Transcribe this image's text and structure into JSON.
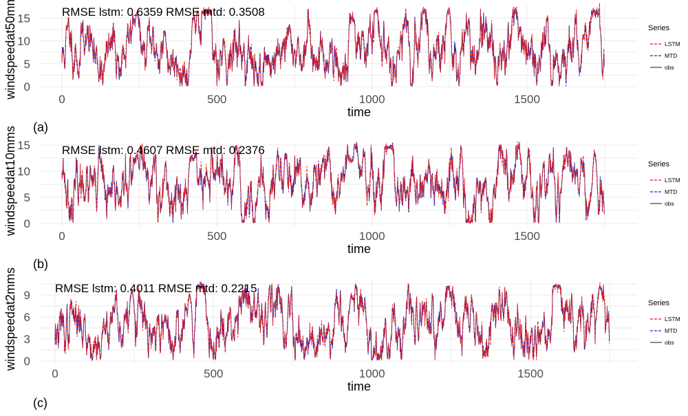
{
  "chart_data": [
    {
      "type": "line",
      "panel_label": "(a)",
      "annotation": "RMSE lstm: 0.6359 RMSE mtd: 0.3508",
      "xlabel": "time",
      "ylabel": "windspeedat50mms",
      "xlim": [
        0,
        1760
      ],
      "ylim": [
        0,
        17
      ],
      "xticks": [
        0,
        500,
        1000,
        1500
      ],
      "yticks": [
        0,
        5,
        10,
        15
      ],
      "grid": true,
      "legend": {
        "title": "Series",
        "position": "right",
        "entries": [
          "LSTM",
          "MTD",
          "obs"
        ]
      },
      "series_generation": {
        "seed": 11,
        "spikes": [
          [
            242,
            16.2
          ],
          [
            425,
            15.2
          ],
          [
            935,
            15.0
          ],
          [
            1718,
            16.0
          ]
        ]
      },
      "series": [
        {
          "name": "LSTM",
          "style": "dashed"
        },
        {
          "name": "MTD",
          "style": "dashed"
        },
        {
          "name": "obs",
          "style": "solid"
        }
      ]
    },
    {
      "type": "line",
      "panel_label": "(b)",
      "annotation": "RMSE lstm: 0.4607 RMSE mtd: 0.2376",
      "xlabel": "time",
      "ylabel": "windspeedat10mms",
      "xlim": [
        0,
        1760
      ],
      "ylim": [
        0,
        15
      ],
      "xticks": [
        0,
        500,
        1000,
        1500
      ],
      "yticks": [
        0,
        5,
        10,
        15
      ],
      "grid": true,
      "legend": {
        "title": "Series",
        "position": "right",
        "entries": [
          "LSTM",
          "MTD",
          "obs"
        ]
      },
      "series_generation": {
        "seed": 23,
        "spikes": [
          [
            242,
            12.8
          ],
          [
            425,
            12.3
          ],
          [
            935,
            12.0
          ],
          [
            1718,
            13.5
          ]
        ]
      },
      "series": [
        {
          "name": "LSTM",
          "style": "dashed"
        },
        {
          "name": "MTD",
          "style": "dashed"
        },
        {
          "name": "obs",
          "style": "solid"
        }
      ]
    },
    {
      "type": "line",
      "panel_label": "(c)",
      "annotation": "RMSE lstm: 0.4011 RMSE mtd: 0.2215",
      "xlabel": "time",
      "ylabel": "windspeedat2mms",
      "xlim": [
        0,
        1760
      ],
      "ylim": [
        0,
        10.5
      ],
      "xticks": [
        0,
        500,
        1000,
        1500
      ],
      "yticks": [
        0,
        3,
        6,
        9
      ],
      "grid": true,
      "legend": {
        "title": "Series",
        "position": "right",
        "entries": [
          "LSTM",
          "MTD",
          "obs"
        ]
      },
      "series_generation": {
        "seed": 37,
        "spikes": [
          [
            242,
            9.5
          ],
          [
            425,
            9.0
          ],
          [
            935,
            8.8
          ],
          [
            1718,
            10.0
          ]
        ]
      },
      "series": [
        {
          "name": "LSTM",
          "style": "dashed"
        },
        {
          "name": "MTD",
          "style": "dashed"
        },
        {
          "name": "obs",
          "style": "solid"
        }
      ]
    }
  ],
  "colors": {
    "LSTM": "#e41a1c",
    "MTD": "#2222cc",
    "obs": "#444444",
    "grid": "#ebebeb"
  }
}
